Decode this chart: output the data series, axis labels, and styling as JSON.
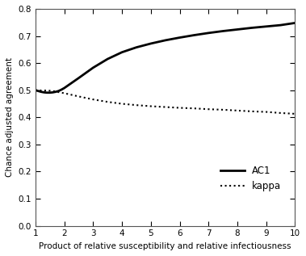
{
  "title": "",
  "xlabel": "Product of relative susceptibility and relative infectiousness",
  "ylabel": "Chance adjusted agreement",
  "xlim": [
    1,
    10
  ],
  "ylim": [
    0,
    0.8
  ],
  "xticks": [
    1,
    2,
    3,
    4,
    5,
    6,
    7,
    8,
    9,
    10
  ],
  "yticks": [
    0,
    0.1,
    0.2,
    0.3,
    0.4,
    0.5,
    0.6,
    0.7,
    0.8
  ],
  "legend_AC1": "AC1",
  "legend_kappa": "kappa",
  "background_color": "#ffffff",
  "line_color": "#000000",
  "ac1_x": [
    1.0,
    1.1,
    1.2,
    1.3,
    1.4,
    1.5,
    1.6,
    1.7,
    1.8,
    1.9,
    2.0,
    2.5,
    3.0,
    3.5,
    4.0,
    4.5,
    5.0,
    5.5,
    6.0,
    6.5,
    7.0,
    7.5,
    8.0,
    8.5,
    9.0,
    9.5,
    10.0
  ],
  "ac1_y": [
    0.5,
    0.497,
    0.494,
    0.492,
    0.491,
    0.491,
    0.492,
    0.494,
    0.497,
    0.502,
    0.508,
    0.545,
    0.583,
    0.615,
    0.64,
    0.658,
    0.672,
    0.684,
    0.694,
    0.703,
    0.711,
    0.718,
    0.724,
    0.73,
    0.735,
    0.74,
    0.748
  ],
  "kappa_x": [
    1.0,
    1.1,
    1.2,
    1.3,
    1.4,
    1.5,
    1.6,
    1.7,
    1.8,
    1.9,
    2.0,
    2.5,
    3.0,
    3.5,
    4.0,
    4.5,
    5.0,
    5.5,
    6.0,
    6.5,
    7.0,
    7.5,
    8.0,
    8.5,
    9.0,
    9.5,
    10.0
  ],
  "kappa_y": [
    0.5,
    0.5,
    0.499,
    0.499,
    0.499,
    0.498,
    0.497,
    0.495,
    0.493,
    0.491,
    0.489,
    0.477,
    0.466,
    0.457,
    0.45,
    0.445,
    0.441,
    0.438,
    0.435,
    0.433,
    0.43,
    0.428,
    0.425,
    0.422,
    0.42,
    0.416,
    0.413
  ]
}
